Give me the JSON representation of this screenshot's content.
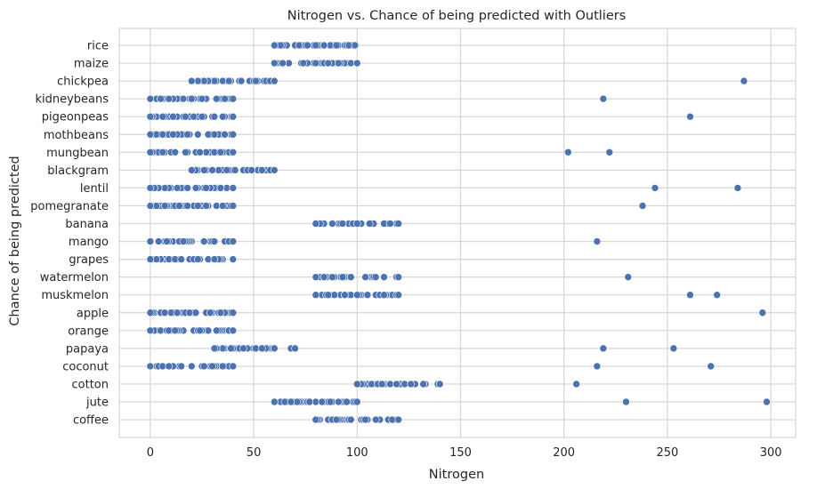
{
  "chart_data": {
    "type": "scatter",
    "title": "Nitrogen vs. Chance of being predicted with Outliers",
    "xlabel": "Nitrogen",
    "ylabel": "Chance of being predicted",
    "xlim": [
      -15,
      312
    ],
    "xticks": [
      0,
      50,
      100,
      150,
      200,
      250,
      300
    ],
    "grid": true,
    "legend": "none",
    "colors": {
      "point": "#4c72b0",
      "point_edge": "#ffffff",
      "grid": "#d5d5d5",
      "axes_edge": "#cccccc"
    },
    "categories": [
      "rice",
      "maize",
      "chickpea",
      "kidneybeans",
      "pigeonpeas",
      "mothbeans",
      "mungbean",
      "blackgram",
      "lentil",
      "pomegranate",
      "banana",
      "mango",
      "grapes",
      "watermelon",
      "muskmelon",
      "apple",
      "orange",
      "papaya",
      "coconut",
      "cotton",
      "jute",
      "coffee"
    ],
    "ranges": [
      {
        "crop": "rice",
        "min": 60,
        "max": 99
      },
      {
        "crop": "maize",
        "min": 60,
        "max": 100
      },
      {
        "crop": "chickpea",
        "min": 20,
        "max": 60
      },
      {
        "crop": "kidneybeans",
        "min": 0,
        "max": 40
      },
      {
        "crop": "pigeonpeas",
        "min": 0,
        "max": 40
      },
      {
        "crop": "mothbeans",
        "min": 0,
        "max": 40
      },
      {
        "crop": "mungbean",
        "min": 0,
        "max": 40
      },
      {
        "crop": "blackgram",
        "min": 20,
        "max": 60
      },
      {
        "crop": "lentil",
        "min": 0,
        "max": 40
      },
      {
        "crop": "pomegranate",
        "min": 0,
        "max": 40
      },
      {
        "crop": "banana",
        "min": 80,
        "max": 120
      },
      {
        "crop": "mango",
        "min": 0,
        "max": 40
      },
      {
        "crop": "grapes",
        "min": 0,
        "max": 40
      },
      {
        "crop": "watermelon",
        "min": 80,
        "max": 120
      },
      {
        "crop": "muskmelon",
        "min": 80,
        "max": 120
      },
      {
        "crop": "apple",
        "min": 0,
        "max": 40
      },
      {
        "crop": "orange",
        "min": 0,
        "max": 40
      },
      {
        "crop": "papaya",
        "min": 31,
        "max": 70
      },
      {
        "crop": "coconut",
        "min": 0,
        "max": 40
      },
      {
        "crop": "cotton",
        "min": 100,
        "max": 140
      },
      {
        "crop": "jute",
        "min": 60,
        "max": 100
      },
      {
        "crop": "coffee",
        "min": 80,
        "max": 120
      }
    ],
    "outliers": [
      {
        "crop": "chickpea",
        "x": 287
      },
      {
        "crop": "kidneybeans",
        "x": 219
      },
      {
        "crop": "pigeonpeas",
        "x": 261
      },
      {
        "crop": "mungbean",
        "x": 202
      },
      {
        "crop": "mungbean",
        "x": 222
      },
      {
        "crop": "lentil",
        "x": 244
      },
      {
        "crop": "lentil",
        "x": 284
      },
      {
        "crop": "pomegranate",
        "x": 238
      },
      {
        "crop": "mango",
        "x": 216
      },
      {
        "crop": "watermelon",
        "x": 231
      },
      {
        "crop": "muskmelon",
        "x": 261
      },
      {
        "crop": "muskmelon",
        "x": 274
      },
      {
        "crop": "apple",
        "x": 296
      },
      {
        "crop": "papaya",
        "x": 219
      },
      {
        "crop": "papaya",
        "x": 253
      },
      {
        "crop": "coconut",
        "x": 216
      },
      {
        "crop": "coconut",
        "x": 271
      },
      {
        "crop": "cotton",
        "x": 206
      },
      {
        "crop": "jute",
        "x": 230
      },
      {
        "crop": "jute",
        "x": 298
      }
    ]
  }
}
